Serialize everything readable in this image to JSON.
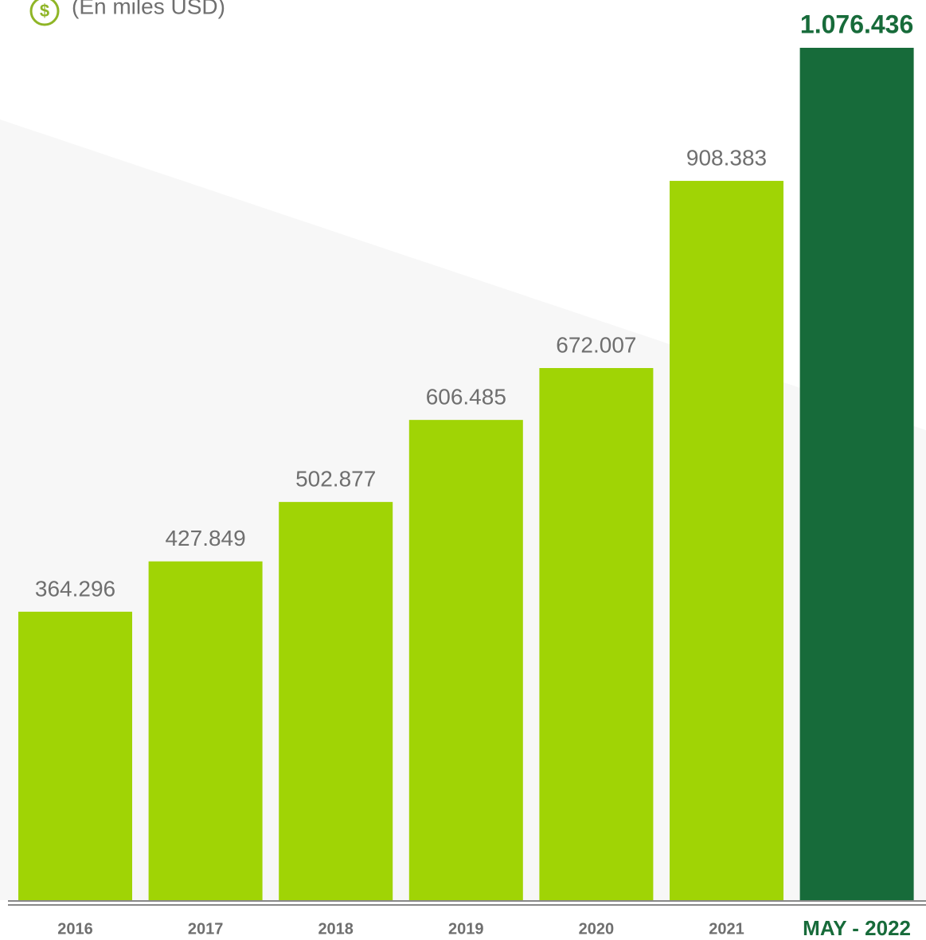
{
  "chart_data": {
    "type": "bar",
    "subtitle": "(En miles USD)",
    "categories": [
      "2016",
      "2017",
      "2018",
      "2019",
      "2020",
      "2021",
      "MAY - 2022"
    ],
    "values": [
      364296,
      427849,
      502877,
      606485,
      672007,
      908383,
      1076436
    ],
    "value_labels": [
      "364.296",
      "427.849",
      "502.877",
      "606.485",
      "672.007",
      "908.383",
      "1.076.436"
    ],
    "colors": [
      "#a0d405",
      "#a0d405",
      "#a0d405",
      "#a0d405",
      "#a0d405",
      "#a0d405",
      "#176b3a"
    ]
  }
}
